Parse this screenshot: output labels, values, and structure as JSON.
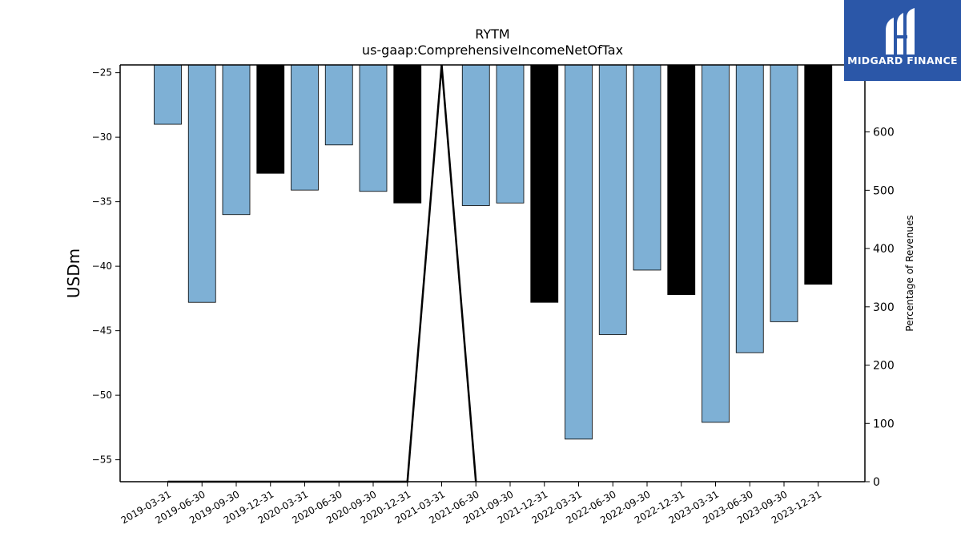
{
  "brand": {
    "name": "MIDGARD FINANCE",
    "bg_color": "#2b57a8"
  },
  "chart_data": {
    "type": "bar",
    "title": "RYTM",
    "subtitle": "us-gaap:ComprehensiveIncomeNetOfTax",
    "ylabel": "USDm",
    "y2label": "Percentage of Revenues",
    "ylim": [
      -56.7,
      -24.4
    ],
    "y2lim": [
      0,
      715
    ],
    "yticks": [
      -25,
      -30,
      -35,
      -40,
      -45,
      -50,
      -55
    ],
    "y2ticks": [
      0,
      100,
      200,
      300,
      400,
      500,
      600
    ],
    "bar_colors": {
      "quarter": "#7eb0d5",
      "year_end": "#000000"
    },
    "categories": [
      "2019-03-31",
      "2019-06-30",
      "2019-09-30",
      "2019-12-31",
      "2020-03-31",
      "2020-06-30",
      "2020-09-30",
      "2020-12-31",
      "2021-03-31",
      "2021-06-30",
      "2021-09-30",
      "2021-12-31",
      "2022-03-31",
      "2022-06-30",
      "2022-09-30",
      "2022-12-31",
      "2023-03-31",
      "2023-06-30",
      "2023-09-30",
      "2023-12-31"
    ],
    "values": [
      -29.0,
      -42.8,
      -36.0,
      -32.8,
      -34.1,
      -30.6,
      -34.2,
      -35.1,
      null,
      -35.3,
      -35.1,
      -42.8,
      -53.4,
      -45.3,
      -40.3,
      -42.2,
      -52.1,
      -46.7,
      -44.3,
      -41.4
    ],
    "year_end": [
      false,
      false,
      false,
      true,
      false,
      false,
      false,
      true,
      false,
      false,
      false,
      true,
      false,
      false,
      false,
      true,
      false,
      false,
      false,
      true
    ],
    "pct_of_revenues": [
      0,
      0,
      0,
      0,
      0,
      0,
      0,
      0,
      715,
      0,
      null,
      null,
      null,
      null,
      null,
      null,
      null,
      null,
      null,
      null
    ]
  }
}
